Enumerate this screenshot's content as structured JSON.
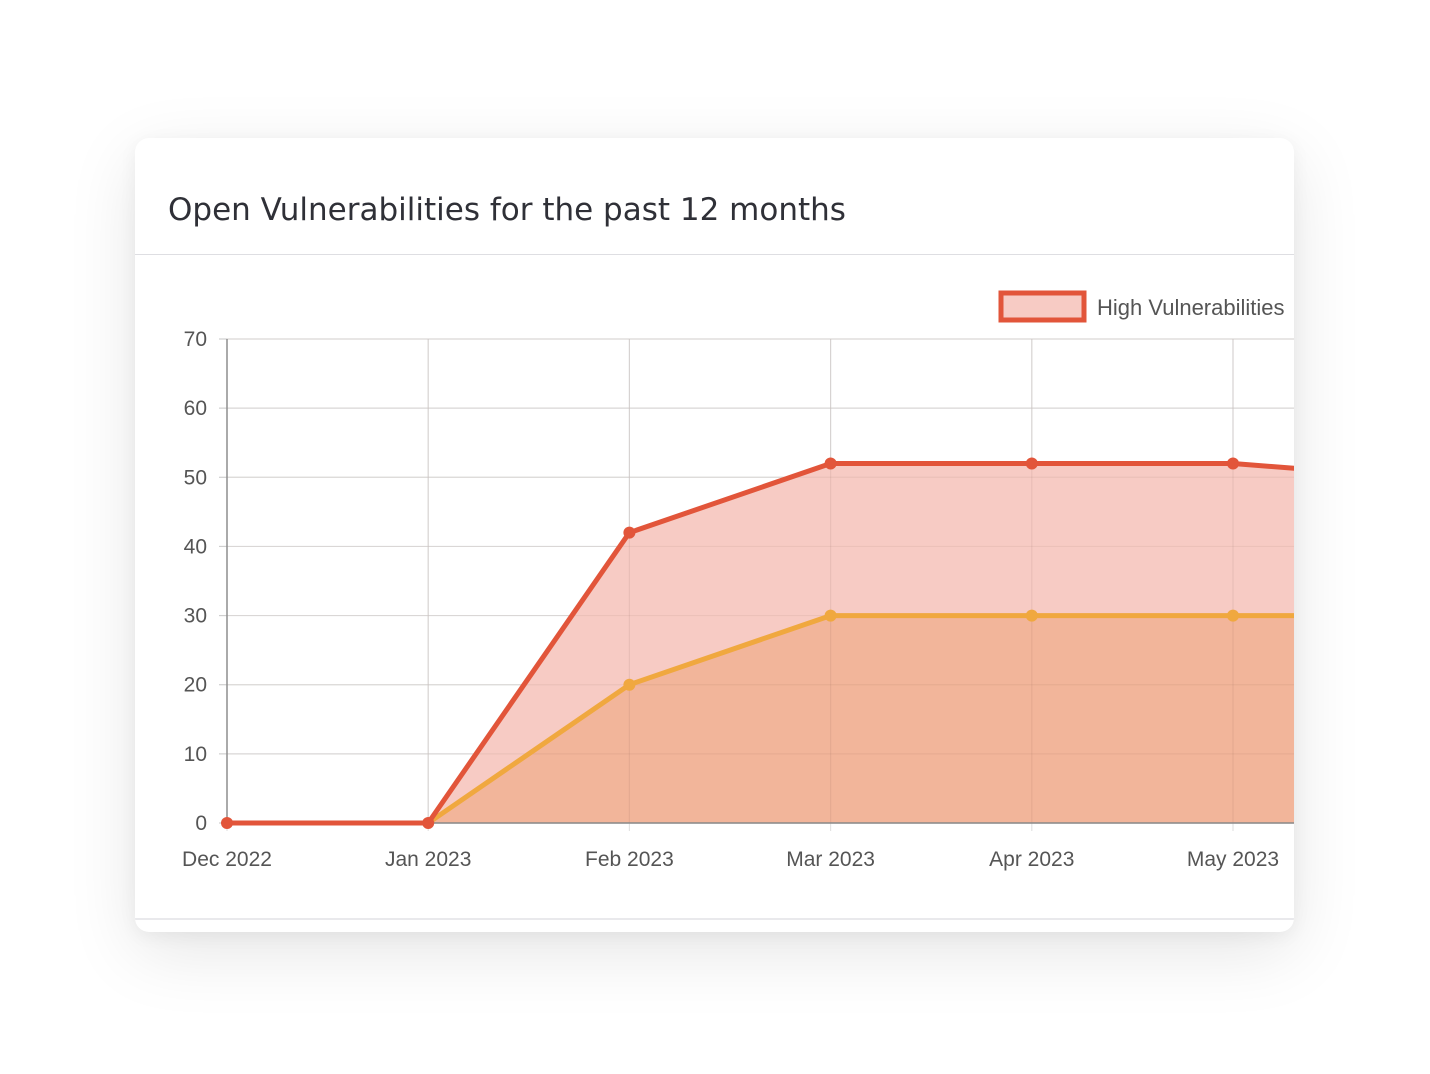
{
  "panel": {
    "title": "Open Vulnerabilities for the past 12 months"
  },
  "chart_data": {
    "type": "area",
    "title": "Open Vulnerabilities for the past 12 months",
    "categories": [
      "Dec 2022",
      "Jan 2023",
      "Feb 2023",
      "Mar 2023",
      "Apr 2023",
      "May 2023"
    ],
    "series": [
      {
        "name": "High Vulnerabilities",
        "values": [
          0,
          0,
          42,
          52,
          52,
          52
        ],
        "line_color": "#e2553a",
        "fill_color": "#f7cbc4"
      },
      {
        "values": [
          0,
          0,
          20,
          30,
          30,
          30
        ],
        "line_color": "#f0a83f",
        "fill_color": "#f2b59a"
      }
    ],
    "visible_edge_value": 51.3,
    "ylim": [
      0,
      70
    ],
    "yticks": [
      0,
      10,
      20,
      30,
      40,
      50,
      60,
      70
    ],
    "grid": true,
    "legend": "top-right",
    "xlabel": "",
    "ylabel": ""
  }
}
